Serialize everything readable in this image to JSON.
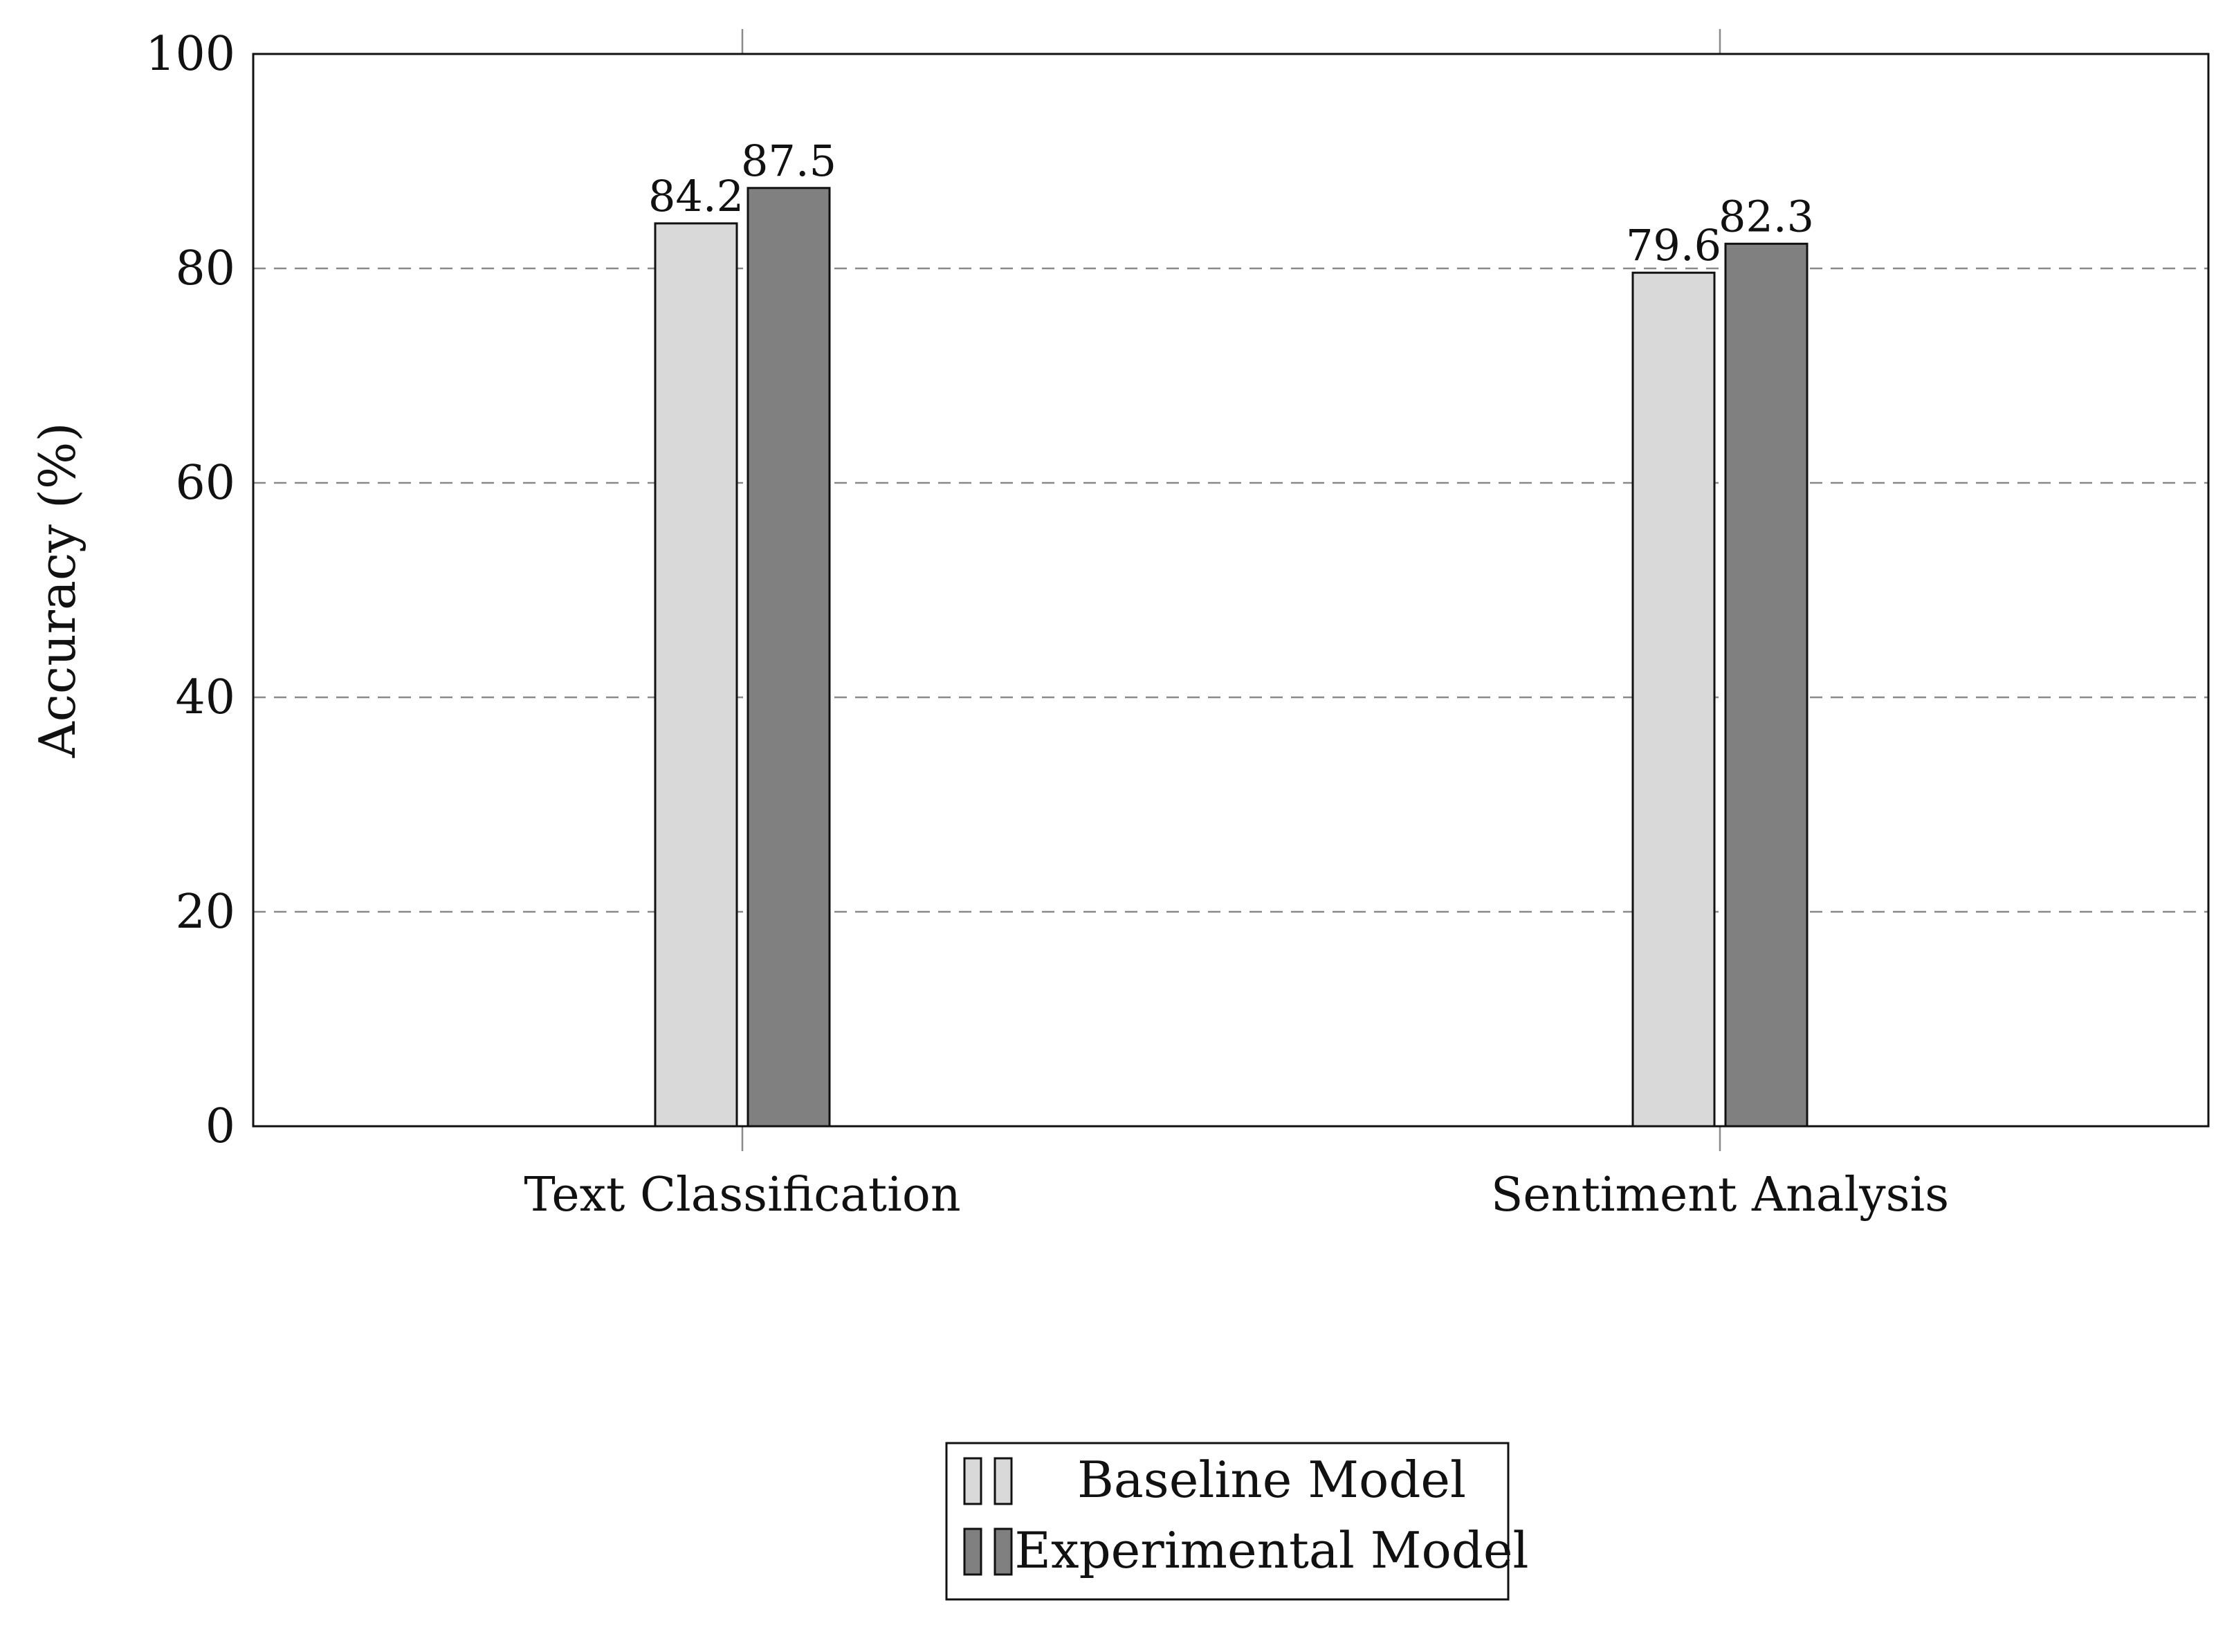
{
  "chart_data": {
    "type": "bar",
    "title": "",
    "xlabel": "",
    "ylabel": "Accuracy (%)",
    "ylim": [
      0,
      100
    ],
    "yticks": [
      0,
      20,
      40,
      60,
      80,
      100
    ],
    "grid": "horizontal dashed at 20, 40, 60, 80",
    "categories": [
      "Text Classification",
      "Sentiment Analysis"
    ],
    "series": [
      {
        "name": "Baseline Model",
        "values": [
          84.2,
          79.6
        ],
        "color": "#d9d9d9"
      },
      {
        "name": "Experimental Model",
        "values": [
          87.5,
          82.3
        ],
        "color": "#808080"
      }
    ],
    "legend_position": "bottom-center"
  }
}
